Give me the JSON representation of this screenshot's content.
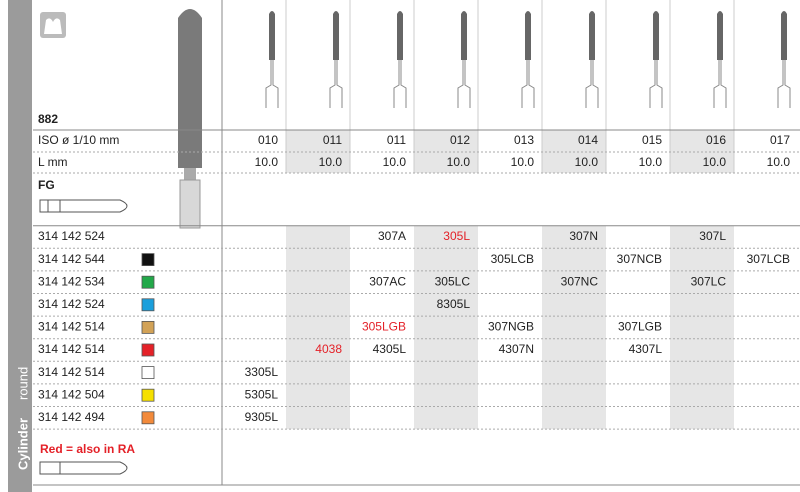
{
  "product_number": "882",
  "iso_label": "ISO ø 1/10 mm",
  "iso_values": [
    "010",
    "011",
    "011",
    "012",
    "013",
    "014",
    "015",
    "016",
    "017"
  ],
  "l_label": "L mm",
  "l_values": [
    "10.0",
    "10.0",
    "10.0",
    "10.0",
    "10.0",
    "10.0",
    "10.0",
    "10.0",
    "10.0"
  ],
  "fg_label": "FG",
  "rows": [
    {
      "code": "314 142 524",
      "swatch": null,
      "cells": [
        null,
        null,
        {
          "text": "307A"
        },
        {
          "text": "305L",
          "red": true
        },
        null,
        {
          "text": "307N"
        },
        null,
        {
          "text": "307L"
        },
        null
      ]
    },
    {
      "code": "314 142 544",
      "swatch": "#111111",
      "cells": [
        null,
        null,
        null,
        null,
        {
          "text": "305LCB"
        },
        null,
        {
          "text": "307NCB"
        },
        null,
        {
          "text": "307LCB"
        }
      ]
    },
    {
      "code": "314 142 534",
      "swatch": "#22a849",
      "cells": [
        null,
        null,
        {
          "text": "307AC"
        },
        {
          "text": "305LC"
        },
        null,
        {
          "text": "307NC"
        },
        null,
        {
          "text": "307LC"
        },
        null
      ]
    },
    {
      "code": "314 142 524",
      "swatch": "#1a9fdc",
      "cells": [
        null,
        null,
        null,
        {
          "text": "8305L"
        },
        null,
        null,
        null,
        null,
        null
      ]
    },
    {
      "code": "314 142 514",
      "swatch": "#d2a257",
      "cells": [
        null,
        null,
        {
          "text": "305LGB",
          "red": true
        },
        null,
        {
          "text": "307NGB"
        },
        null,
        {
          "text": "307LGB"
        },
        null,
        null
      ]
    },
    {
      "code": "314 142 514",
      "swatch": "#e42128",
      "cells": [
        null,
        {
          "text": "4038",
          "red": true
        },
        {
          "text": "4305L"
        },
        null,
        {
          "text": "4307N"
        },
        null,
        {
          "text": "4307L"
        },
        null,
        null
      ]
    },
    {
      "code": "314 142 514",
      "swatch": "#ffffff",
      "cells": [
        {
          "text": "3305L"
        },
        null,
        null,
        null,
        null,
        null,
        null,
        null,
        null
      ]
    },
    {
      "code": "314 142 504",
      "swatch": "#f5e000",
      "cells": [
        {
          "text": "5305L"
        },
        null,
        null,
        null,
        null,
        null,
        null,
        null,
        null
      ]
    },
    {
      "code": "314 142 494",
      "swatch": "#f28a3b",
      "cells": [
        {
          "text": "9305L"
        },
        null,
        null,
        null,
        null,
        null,
        null,
        null,
        null
      ]
    }
  ],
  "note": "Red = also in RA",
  "side_label_1": "Cylinder",
  "side_label_2": "round"
}
